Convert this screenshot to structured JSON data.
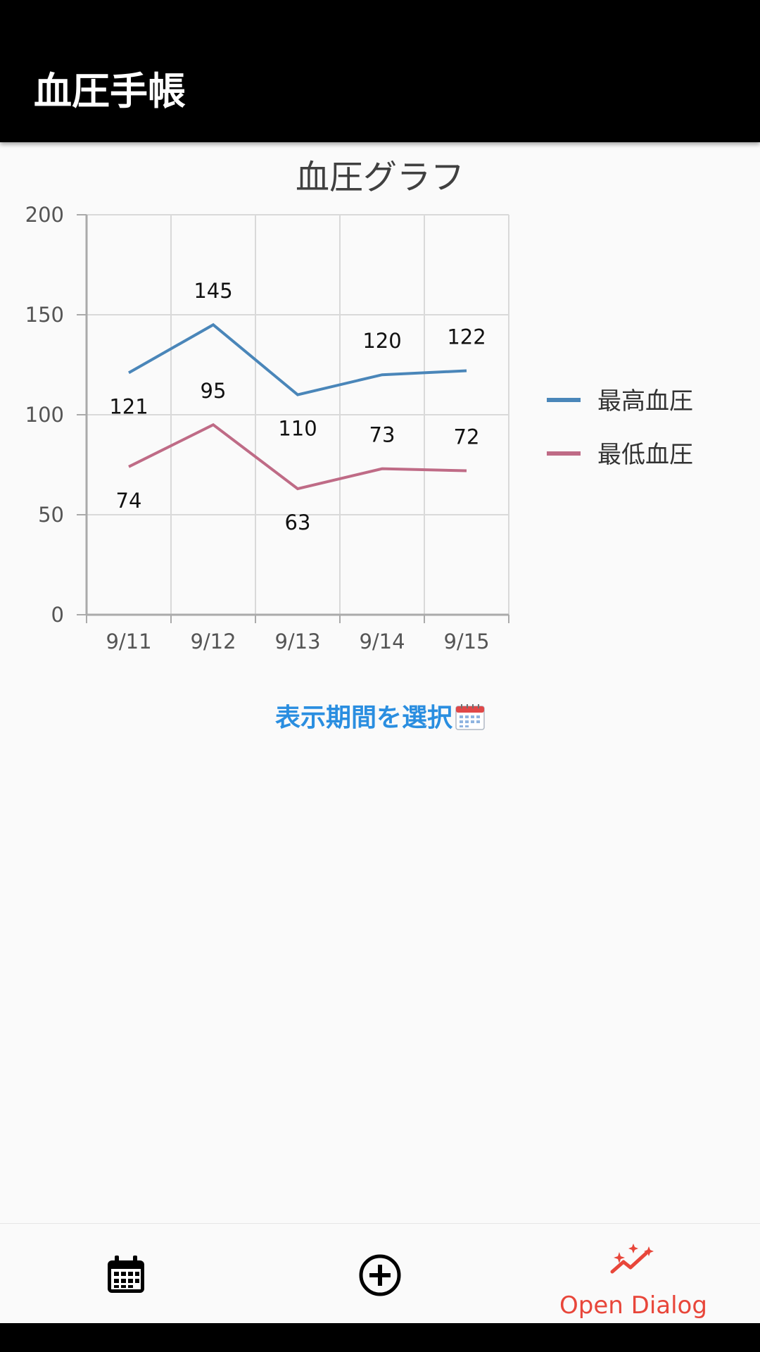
{
  "app_bar": {
    "title": "血圧手帳"
  },
  "chart_data": {
    "type": "line",
    "title": "血圧グラフ",
    "categories": [
      "9/11",
      "9/12",
      "9/13",
      "9/14",
      "9/15"
    ],
    "series": [
      {
        "name": "最高血圧",
        "values": [
          121,
          145,
          110,
          120,
          122
        ],
        "color": "#4a86b9"
      },
      {
        "name": "最低血圧",
        "values": [
          74,
          95,
          63,
          73,
          72
        ],
        "color": "#bf6b86"
      }
    ],
    "ylim": [
      0,
      200
    ],
    "yticks": [
      0,
      50,
      100,
      150,
      200
    ],
    "grid": true,
    "legend_position": "right",
    "data_labels": true
  },
  "period_button": {
    "label": "表示期間を選択"
  },
  "bottom_nav": {
    "items": [
      {
        "icon": "calendar-icon",
        "label": ""
      },
      {
        "icon": "add-circle-icon",
        "label": ""
      },
      {
        "icon": "sparkle-trend-icon",
        "label": "Open Dialog"
      }
    ],
    "active_color": "#e8463a"
  }
}
